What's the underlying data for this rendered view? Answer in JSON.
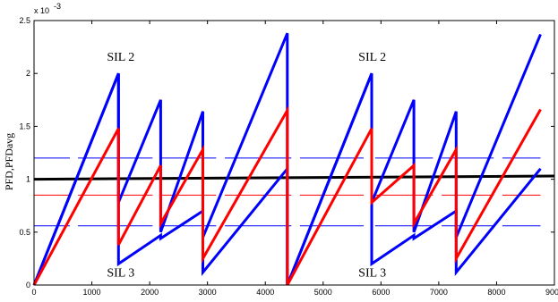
{
  "chart_data": {
    "type": "line",
    "title": "",
    "xlabel": "",
    "ylabel": "PFD,PFDavg",
    "y_exponent_label": "x 10",
    "y_exponent_power": "-3",
    "xlim": [
      0,
      9000
    ],
    "ylim": [
      0,
      2.5
    ],
    "x_ticks": [
      0,
      1000,
      2000,
      3000,
      4000,
      5000,
      6000,
      7000,
      8000,
      9000
    ],
    "y_ticks": [
      0,
      0.5,
      1,
      1.5,
      2,
      2.5
    ],
    "x_tick_labels": [
      "0",
      "1000",
      "2000",
      "3000",
      "4000",
      "5000",
      "6000",
      "7000",
      "8000",
      "9000"
    ],
    "y_tick_labels": [
      "0",
      "0.5",
      "1",
      "1.5",
      "2",
      "2.5"
    ],
    "grid": false,
    "series": [
      {
        "color": "#0000ff",
        "x": [
          0,
          1460,
          1460,
          2190,
          2190,
          2920,
          2920,
          4380,
          4380,
          5840,
          5840,
          6570,
          6570,
          7300,
          7300,
          8760
        ],
        "y": [
          0,
          2.0,
          0.2,
          0.47,
          0.44,
          0.7,
          0.12,
          1.1,
          0,
          2.0,
          0.2,
          0.47,
          0.44,
          0.7,
          0.12,
          1.1
        ]
      },
      {
        "color": "#0000ff",
        "x": [
          0,
          1460,
          1460,
          2190,
          2190,
          2920,
          2920,
          4380,
          4380,
          5840,
          5840,
          6570,
          6570,
          7300,
          7300,
          8760
        ],
        "y": [
          0,
          2.0,
          0.78,
          1.75,
          0.5,
          1.64,
          0.45,
          2.38,
          0,
          2.0,
          0.78,
          1.75,
          0.5,
          1.64,
          0.45,
          2.37
        ]
      },
      {
        "color": "#ff0000",
        "x": [
          0,
          1460,
          1460,
          2190,
          2190,
          2920,
          2920,
          4380,
          4380,
          5840,
          5840,
          6570,
          6570,
          7300,
          7300,
          8760
        ],
        "y": [
          0,
          1.48,
          0.38,
          1.13,
          0.58,
          1.28,
          0.25,
          1.65,
          0,
          1.48,
          0.78,
          1.13,
          0.58,
          1.28,
          0.25,
          1.66
        ]
      }
    ],
    "reference_lines": [
      {
        "color": "#000000",
        "y": [
          1.0,
          1.03
        ],
        "x": [
          0,
          9000
        ]
      },
      {
        "color": "#0000ff",
        "y": [
          1.2,
          1.2
        ],
        "x": [
          0,
          8760
        ]
      },
      {
        "color": "#ff0000",
        "y": [
          0.85,
          0.85
        ],
        "x": [
          0,
          8760
        ]
      },
      {
        "color": "#0000ff",
        "y": [
          0.56,
          0.56
        ],
        "x": [
          0,
          8760
        ]
      }
    ],
    "annotations": [
      {
        "text": "SIL 2",
        "x": 1500,
        "y": 2.12
      },
      {
        "text": "SIL 2",
        "x": 5850,
        "y": 2.12
      },
      {
        "text": "SIL 3",
        "x": 1500,
        "y": 0.08
      },
      {
        "text": "SIL 3",
        "x": 5850,
        "y": 0.08
      }
    ]
  }
}
